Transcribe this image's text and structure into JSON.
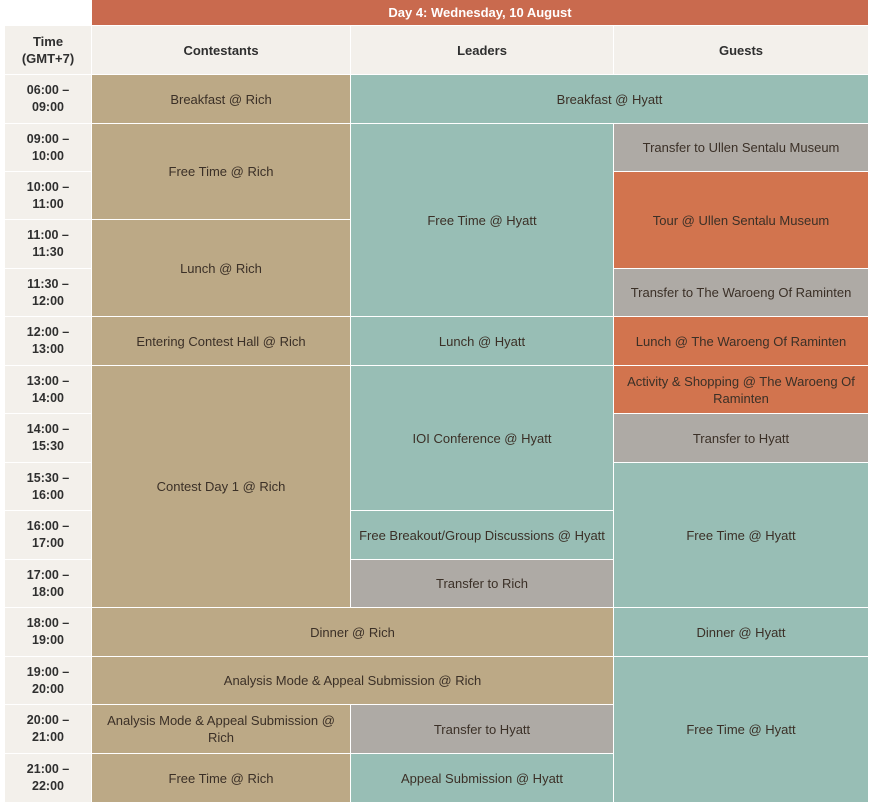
{
  "day_title": "Day 4: Wednesday, 10 August",
  "headers": {
    "time": "Time\n(GMT+7)",
    "contestants": "Contestants",
    "leaders": "Leaders",
    "guests": "Guests"
  },
  "times": [
    "06:00 –\n09:00",
    "09:00 –\n10:00",
    "10:00 –\n11:00",
    "11:00 –\n11:30",
    "11:30 –\n12:00",
    "12:00 –\n13:00",
    "13:00 –\n14:00",
    "14:00 –\n15:30",
    "15:30 –\n16:00",
    "16:00 –\n17:00",
    "17:00 –\n18:00",
    "18:00 –\n19:00",
    "19:00 –\n20:00",
    "20:00 –\n21:00",
    "21:00 –\n22:00"
  ],
  "contestants": [
    "Breakfast @ Rich",
    "Free Time @ Rich",
    "Lunch @ Rich",
    "Entering Contest Hall @ Rich",
    "Contest Day 1 @ Rich",
    "Analysis Mode & Appeal Submission @ Rich",
    "Free Time @ Rich"
  ],
  "leaders": [
    "Free Time @ Hyatt",
    "Lunch @ Hyatt",
    "IOI Conference @ Hyatt",
    "Free Breakout/Group Discussions @ Hyatt",
    "Transfer to Rich",
    "Transfer to Hyatt",
    "Appeal Submission @ Hyatt"
  ],
  "guests": [
    "Transfer to Ullen Sentalu Museum",
    "Tour @ Ullen Sentalu Museum",
    "Transfer to The Waroeng Of Raminten",
    "Lunch @ The Waroeng Of Raminten",
    "Activity & Shopping @ The Waroeng Of Raminten",
    "Transfer to Hyatt",
    "Free Time @ Hyatt",
    "Dinner @ Hyatt",
    "Free Time @ Hyatt"
  ],
  "shared": {
    "breakfast_leaders_guests": "Breakfast @ Hyatt",
    "dinner_contestants_leaders": "Dinner @ Rich",
    "analysis_contestants_leaders": "Analysis Mode & Appeal Submission @ Rich"
  }
}
